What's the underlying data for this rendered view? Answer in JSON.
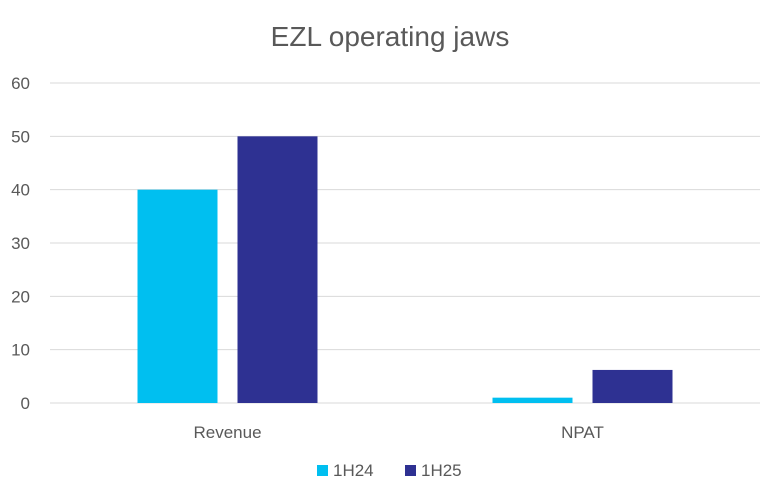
{
  "chart_data": {
    "type": "bar",
    "title": "EZL operating jaws",
    "xlabel": "",
    "ylabel": "",
    "categories": [
      "Revenue",
      "NPAT"
    ],
    "series": [
      {
        "name": "1H24",
        "values": [
          40,
          1
        ],
        "color": "#00bff0"
      },
      {
        "name": "1H25",
        "values": [
          50,
          6.2
        ],
        "color": "#2e3192"
      }
    ],
    "ylim": [
      0,
      60
    ],
    "yticks": [
      0,
      10,
      20,
      30,
      40,
      50,
      60
    ],
    "grid": true,
    "legend_position": "bottom"
  }
}
